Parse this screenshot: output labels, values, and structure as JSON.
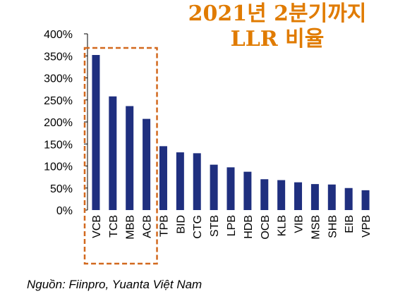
{
  "title_line1": "2021년 2분기까지",
  "title_line2": "LLR 비율",
  "source": "Nguồn: Fiinpro, Yuanta Việt Nam",
  "colors": {
    "bar": "#1f2f7f",
    "title": "#e07b00",
    "highlight_box": "#d2691e"
  },
  "chart_data": {
    "type": "bar",
    "categories": [
      "VCB",
      "TCB",
      "MBB",
      "ACB",
      "TPB",
      "BID",
      "CTG",
      "STB",
      "LPB",
      "HDB",
      "OCB",
      "KLB",
      "VIB",
      "MSB",
      "SHB",
      "EIB",
      "VPB"
    ],
    "values": [
      352,
      258,
      236,
      207,
      145,
      131,
      129,
      103,
      97,
      87,
      70,
      68,
      63,
      59,
      58,
      50,
      45
    ],
    "ylim": [
      0,
      400
    ],
    "yticks": [
      "0%",
      "50%",
      "100%",
      "150%",
      "200%",
      "250%",
      "300%",
      "350%",
      "400%"
    ],
    "highlight": [
      "VCB",
      "TCB",
      "MBB",
      "ACB"
    ],
    "grid": false,
    "legend": "none"
  }
}
